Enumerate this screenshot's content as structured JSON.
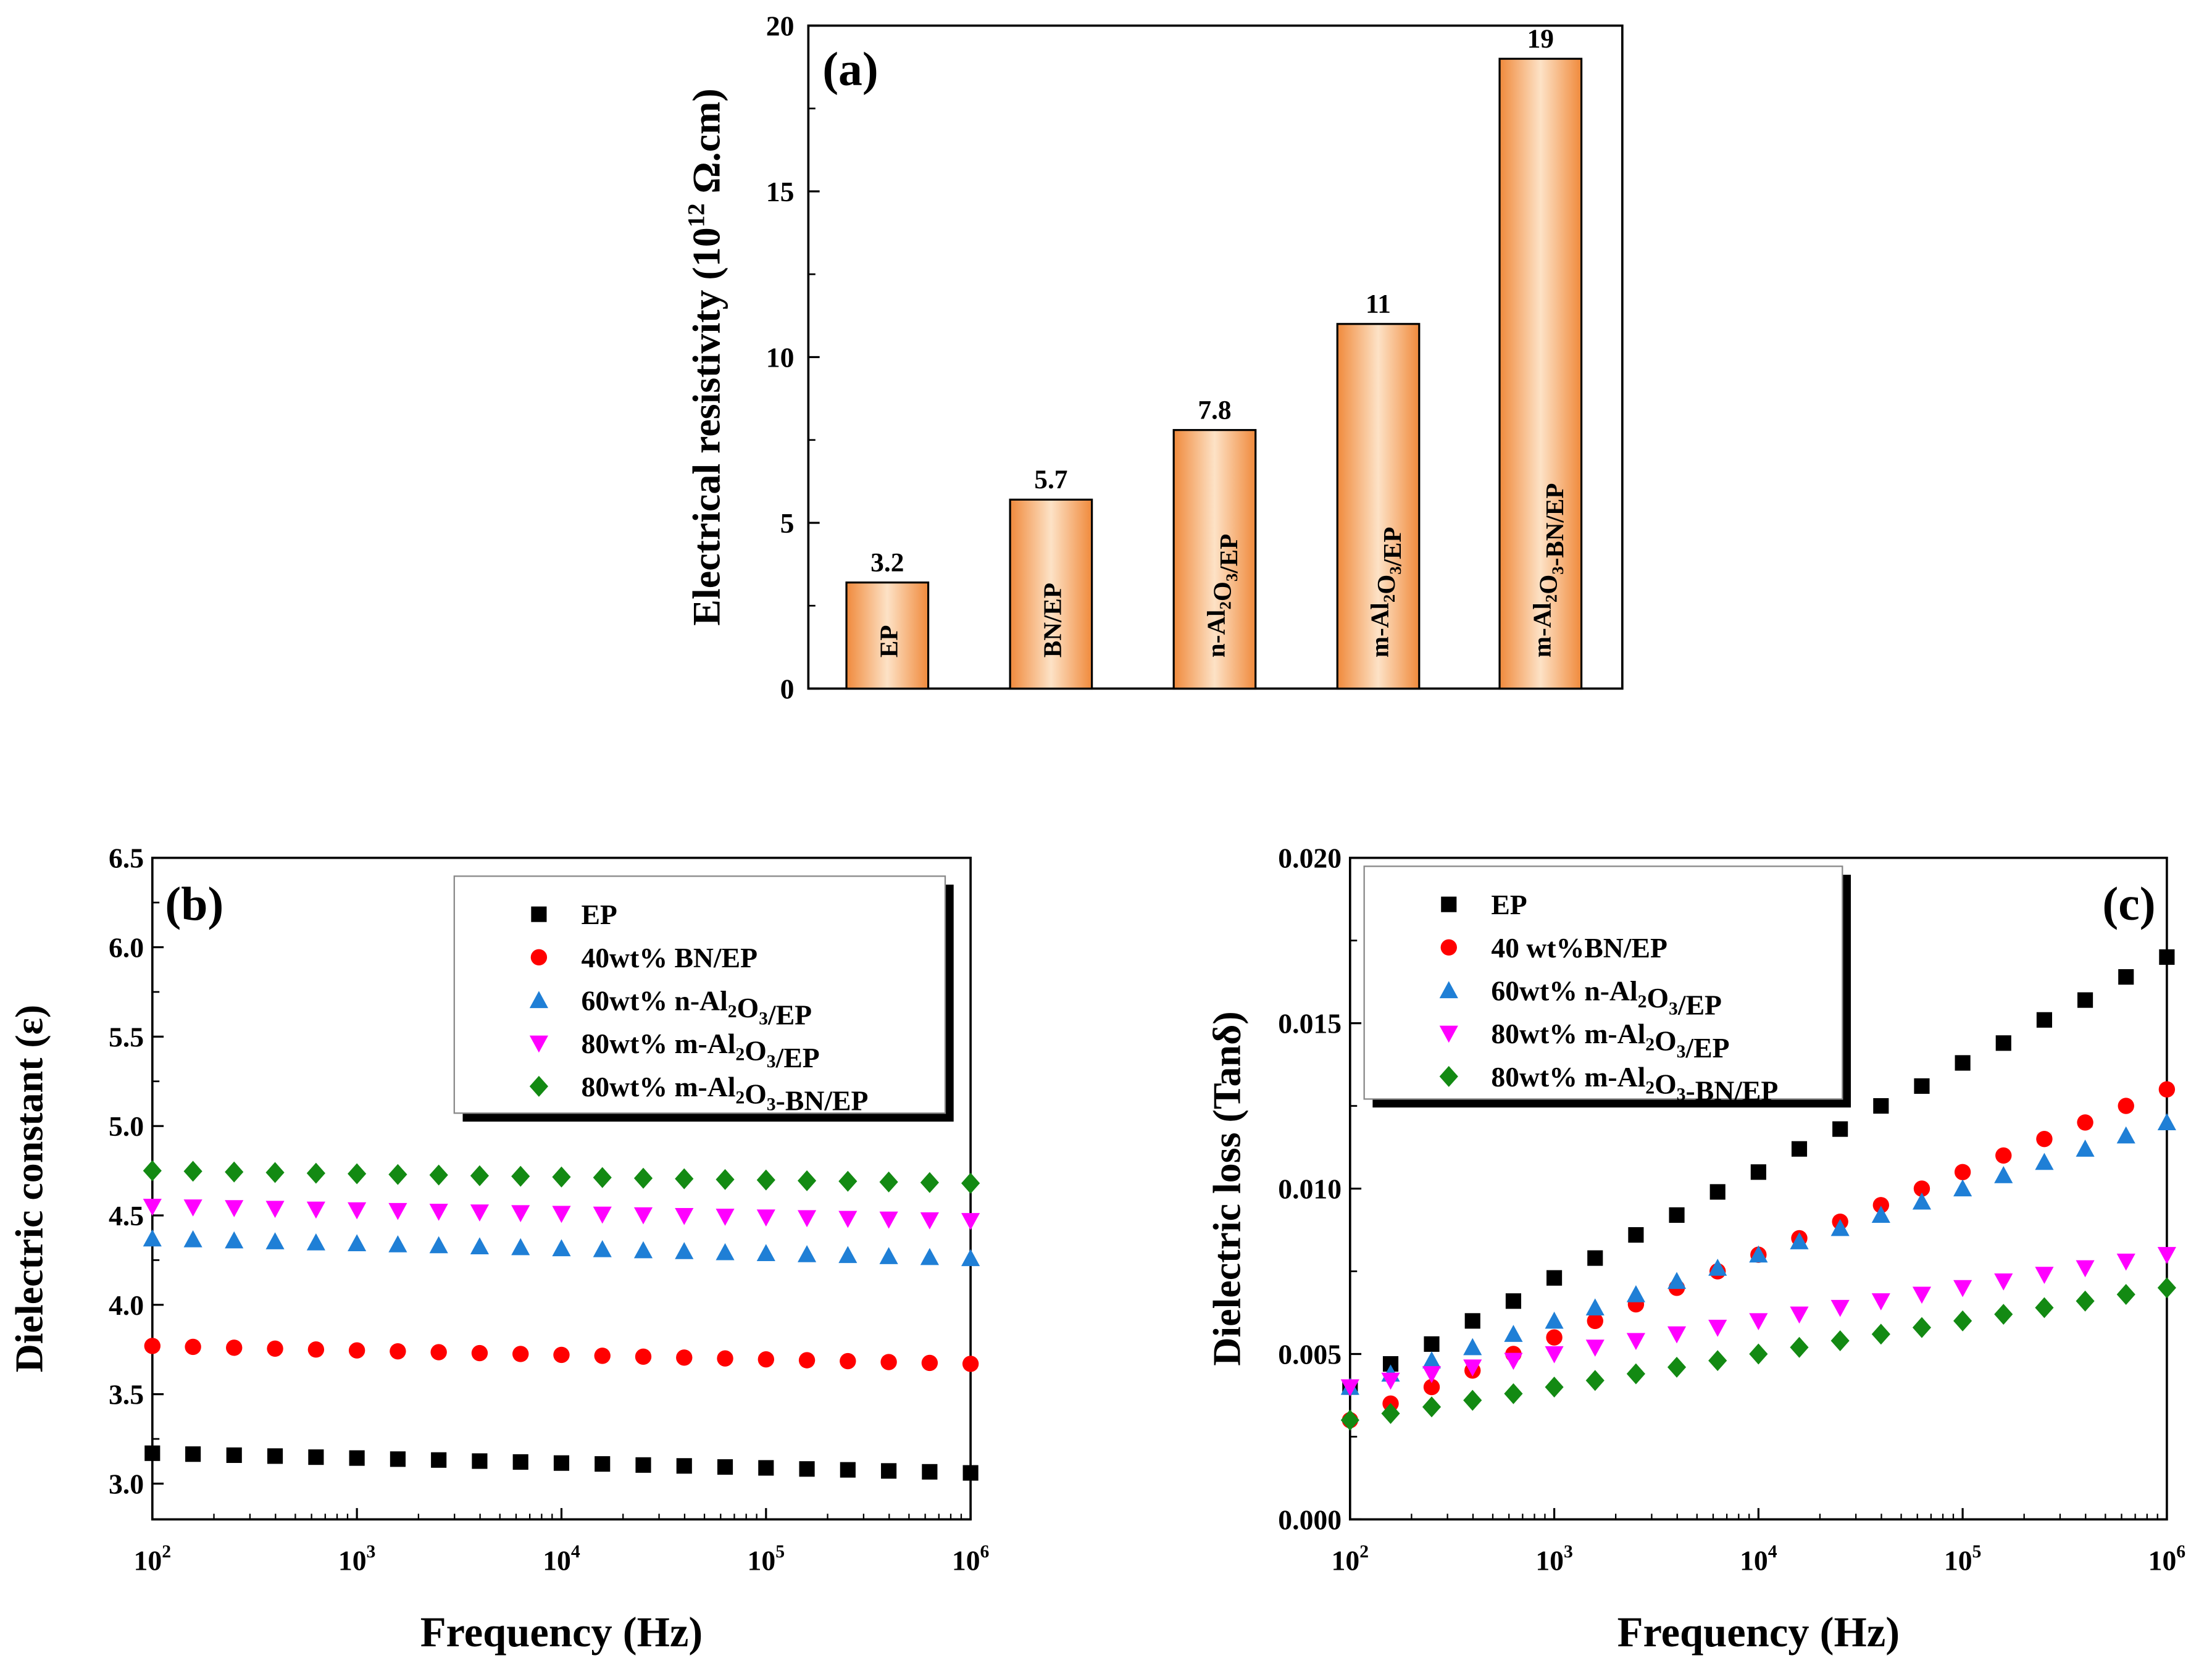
{
  "chart_data": [
    {
      "type": "bar",
      "panel_label": "(a)",
      "categories": [
        "EP",
        "BN/EP",
        "n-Al2O3/EP",
        "m-Al2O3/EP",
        "m-Al2O3-BN/EP"
      ],
      "values": [
        3.2,
        5.7,
        7.8,
        11,
        19
      ],
      "value_labels": [
        "3.2",
        "5.7",
        "7.8",
        "11",
        "19"
      ],
      "ylabel": "Electrical resistivity (10^12 Ω.cm)",
      "ylim": [
        0,
        20
      ],
      "yticks": [
        "0",
        "5",
        "10",
        "15",
        "20"
      ],
      "bar_color": "#f7a25c"
    },
    {
      "type": "scatter",
      "panel_label": "(b)",
      "xlabel": "Frequency (Hz)",
      "ylabel": "Dielectric constant (ε)",
      "xscale": "log",
      "xlim": [
        100,
        1000000
      ],
      "ylim": [
        2.8,
        6.5
      ],
      "xticks": [
        "2",
        "3",
        "4",
        "5",
        "6"
      ],
      "yticks": [
        "3.0",
        "3.5",
        "4.0",
        "4.5",
        "5.0",
        "5.5",
        "6.0",
        "6.5"
      ],
      "legend_position": "top-right",
      "x": [
        100,
        158,
        251,
        398,
        631,
        1000,
        1585,
        2512,
        3981,
        6310,
        10000,
        15849,
        25119,
        39811,
        63096,
        100000,
        158489,
        251189,
        398107,
        630957,
        1000000
      ],
      "series": [
        {
          "name": "EP",
          "marker": "square",
          "color": "#000000",
          "values": [
            3.17,
            3.165,
            3.159,
            3.154,
            3.148,
            3.143,
            3.137,
            3.132,
            3.126,
            3.121,
            3.115,
            3.11,
            3.104,
            3.099,
            3.093,
            3.088,
            3.082,
            3.077,
            3.071,
            3.066,
            3.06
          ]
        },
        {
          "name": "40wt% BN/EP",
          "marker": "circle",
          "color": "#ff0000",
          "values": [
            3.77,
            3.765,
            3.76,
            3.755,
            3.75,
            3.745,
            3.74,
            3.735,
            3.73,
            3.725,
            3.72,
            3.715,
            3.71,
            3.705,
            3.7,
            3.695,
            3.69,
            3.685,
            3.68,
            3.675,
            3.67
          ]
        },
        {
          "name": "60wt% n-Al2O3/EP",
          "marker": "triangle-up",
          "color": "#1f7fd6",
          "values": [
            4.37,
            4.365,
            4.359,
            4.354,
            4.348,
            4.343,
            4.337,
            4.332,
            4.326,
            4.321,
            4.315,
            4.31,
            4.304,
            4.299,
            4.293,
            4.288,
            4.282,
            4.277,
            4.271,
            4.266,
            4.26
          ]
        },
        {
          "name": "80wt% m-Al2O3/EP",
          "marker": "triangle-down",
          "color": "#ff00ff",
          "values": [
            4.55,
            4.546,
            4.542,
            4.538,
            4.534,
            4.53,
            4.526,
            4.522,
            4.518,
            4.514,
            4.51,
            4.506,
            4.502,
            4.498,
            4.494,
            4.49,
            4.486,
            4.482,
            4.478,
            4.474,
            4.47
          ]
        },
        {
          "name": "80wt% m-Al2O3-BN/EP",
          "marker": "diamond",
          "color": "#138a13",
          "values": [
            4.75,
            4.747,
            4.743,
            4.74,
            4.736,
            4.733,
            4.729,
            4.726,
            4.722,
            4.719,
            4.715,
            4.712,
            4.708,
            4.705,
            4.701,
            4.698,
            4.694,
            4.691,
            4.687,
            4.684,
            4.68
          ]
        }
      ]
    },
    {
      "type": "scatter",
      "panel_label": "(c)",
      "xlabel": "Frequency (Hz)",
      "ylabel": "Dielectric loss (Tanδ)",
      "xscale": "log",
      "xlim": [
        100,
        1000000
      ],
      "ylim": [
        0,
        0.02
      ],
      "xticks": [
        "2",
        "3",
        "4",
        "5",
        "6"
      ],
      "yticks": [
        "0.000",
        "0.005",
        "0.010",
        "0.015",
        "0.020"
      ],
      "legend_position": "top-left",
      "x": [
        100,
        158,
        251,
        398,
        631,
        1000,
        1585,
        2512,
        3981,
        6310,
        10000,
        15849,
        25119,
        39811,
        63096,
        100000,
        158489,
        251189,
        398107,
        630957,
        1000000
      ],
      "series": [
        {
          "name": "EP",
          "marker": "square",
          "color": "#000000",
          "values": [
            0.004,
            0.0047,
            0.0053,
            0.006,
            0.0066,
            0.0073,
            0.0079,
            0.0086,
            0.0092,
            0.0099,
            0.0105,
            0.0112,
            0.0118,
            0.0125,
            0.0131,
            0.0138,
            0.0144,
            0.0151,
            0.0157,
            0.0164,
            0.017
          ]
        },
        {
          "name": "40 wt%BN/EP",
          "marker": "circle",
          "color": "#ff0000",
          "values": [
            0.003,
            0.0035,
            0.004,
            0.0045,
            0.005,
            0.0055,
            0.006,
            0.0065,
            0.007,
            0.0075,
            0.008,
            0.0085,
            0.009,
            0.0095,
            0.01,
            0.0105,
            0.011,
            0.0115,
            0.012,
            0.0125,
            0.013
          ]
        },
        {
          "name": "60wt% n-Al2O3/EP",
          "marker": "triangle-up",
          "color": "#1f7fd6",
          "values": [
            0.004,
            0.0044,
            0.0048,
            0.0052,
            0.0056,
            0.006,
            0.0064,
            0.0068,
            0.0072,
            0.0076,
            0.008,
            0.0084,
            0.0088,
            0.0092,
            0.0096,
            0.01,
            0.0104,
            0.0108,
            0.0112,
            0.0116,
            0.012
          ]
        },
        {
          "name": "80wt% m-Al2O3/EP",
          "marker": "triangle-down",
          "color": "#ff00ff",
          "values": [
            0.004,
            0.0042,
            0.0044,
            0.0046,
            0.0048,
            0.005,
            0.0052,
            0.0054,
            0.0056,
            0.0058,
            0.006,
            0.0062,
            0.0064,
            0.0066,
            0.0068,
            0.007,
            0.0072,
            0.0074,
            0.0076,
            0.0078,
            0.008
          ]
        },
        {
          "name": "80wt% m-Al2O3-BN/EP",
          "marker": "diamond",
          "color": "#138a13",
          "values": [
            0.003,
            0.0032,
            0.0034,
            0.0036,
            0.0038,
            0.004,
            0.0042,
            0.0044,
            0.0046,
            0.0048,
            0.005,
            0.0052,
            0.0054,
            0.0056,
            0.0058,
            0.006,
            0.0062,
            0.0064,
            0.0066,
            0.0068,
            0.007
          ]
        }
      ]
    }
  ]
}
